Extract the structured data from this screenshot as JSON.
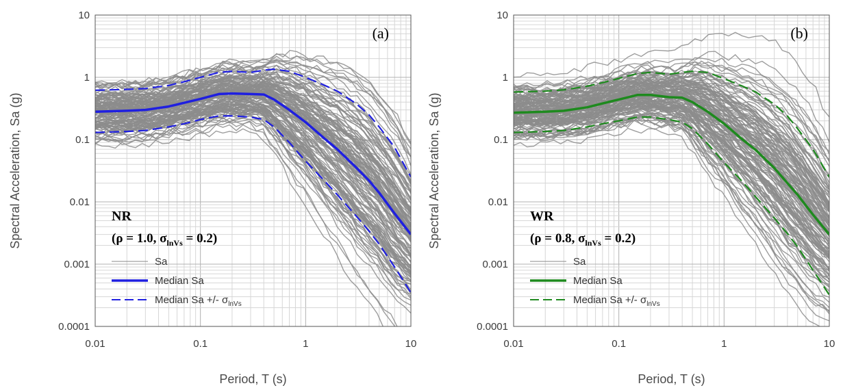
{
  "chart_data": [
    {
      "type": "line",
      "panel_label": "(a)",
      "case_name": "NR",
      "case_params": {
        "rho": "1.0",
        "sigma_sub": "lnVs",
        "sigma": "0.2"
      },
      "xlabel": "Period, T (s)",
      "ylabel": "Spectral Acceleration, Sa (g)",
      "xscale": "log",
      "yscale": "log",
      "xlim": [
        0.01,
        10
      ],
      "ylim": [
        0.0001,
        10
      ],
      "x_ticks": [
        "0.01",
        "0.1",
        "1",
        "10"
      ],
      "y_ticks": [
        "0.0001",
        "0.001",
        "0.01",
        "0.1",
        "1",
        "10"
      ],
      "grid": true,
      "legend": [
        {
          "label": "Sa",
          "style": "thin-gray",
          "color": "#888888"
        },
        {
          "label": "Median Sa",
          "style": "solid",
          "color": "#1f1fe0"
        },
        {
          "label": "Median Sa +/- σ",
          "sub": "lnVs",
          "style": "dashed",
          "color": "#1f1fe0"
        }
      ],
      "series": [
        {
          "name": "Median Sa",
          "style": "solid",
          "color": "#1f1fe0",
          "x": [
            0.01,
            0.02,
            0.03,
            0.05,
            0.07,
            0.1,
            0.15,
            0.2,
            0.3,
            0.4,
            0.5,
            0.7,
            1,
            1.5,
            2,
            3,
            4,
            5,
            7,
            10
          ],
          "y": [
            0.28,
            0.29,
            0.3,
            0.34,
            0.39,
            0.45,
            0.54,
            0.55,
            0.54,
            0.53,
            0.44,
            0.3,
            0.19,
            0.105,
            0.07,
            0.036,
            0.022,
            0.014,
            0.0065,
            0.003
          ]
        },
        {
          "name": "Median Sa + σ",
          "style": "dashed",
          "color": "#1f1fe0",
          "x": [
            0.01,
            0.02,
            0.03,
            0.05,
            0.07,
            0.1,
            0.15,
            0.2,
            0.3,
            0.4,
            0.5,
            0.7,
            1,
            1.5,
            2,
            3,
            4,
            5,
            7,
            10
          ],
          "y": [
            0.62,
            0.64,
            0.66,
            0.74,
            0.85,
            1.0,
            1.2,
            1.25,
            1.2,
            1.3,
            1.35,
            1.25,
            1.0,
            0.75,
            0.6,
            0.38,
            0.25,
            0.16,
            0.075,
            0.025
          ]
        },
        {
          "name": "Median Sa - σ",
          "style": "dashed",
          "color": "#1f1fe0",
          "x": [
            0.01,
            0.02,
            0.03,
            0.05,
            0.07,
            0.1,
            0.15,
            0.2,
            0.3,
            0.4,
            0.5,
            0.7,
            1,
            1.5,
            2,
            3,
            4,
            5,
            7,
            10
          ],
          "y": [
            0.13,
            0.135,
            0.14,
            0.16,
            0.18,
            0.21,
            0.24,
            0.24,
            0.23,
            0.21,
            0.16,
            0.09,
            0.045,
            0.022,
            0.013,
            0.006,
            0.0034,
            0.0021,
            0.0009,
            0.00035
          ]
        }
      ]
    },
    {
      "type": "line",
      "panel_label": "(b)",
      "case_name": "WR",
      "case_params": {
        "rho": "0.8",
        "sigma_sub": "lnVs",
        "sigma": "0.2"
      },
      "xlabel": "Period, T (s)",
      "ylabel": "Spectral Acceleration, Sa (g)",
      "xscale": "log",
      "yscale": "log",
      "xlim": [
        0.01,
        10
      ],
      "ylim": [
        0.0001,
        10
      ],
      "x_ticks": [
        "0.01",
        "0.1",
        "1",
        "10"
      ],
      "y_ticks": [
        "0.0001",
        "0.001",
        "0.01",
        "0.1",
        "1",
        "10"
      ],
      "grid": true,
      "legend": [
        {
          "label": "Sa",
          "style": "thin-gray",
          "color": "#888888"
        },
        {
          "label": "Median Sa",
          "style": "solid",
          "color": "#1e8a1e"
        },
        {
          "label": "Median Sa +/- σ",
          "sub": "lnVs",
          "style": "dashed",
          "color": "#1e8a1e"
        }
      ],
      "series": [
        {
          "name": "Median Sa",
          "style": "solid",
          "color": "#1e8a1e",
          "x": [
            0.01,
            0.02,
            0.03,
            0.05,
            0.07,
            0.1,
            0.15,
            0.2,
            0.3,
            0.4,
            0.5,
            0.7,
            1,
            1.5,
            2,
            3,
            4,
            5,
            7,
            10
          ],
          "y": [
            0.27,
            0.28,
            0.29,
            0.33,
            0.38,
            0.44,
            0.52,
            0.52,
            0.48,
            0.47,
            0.4,
            0.28,
            0.18,
            0.1,
            0.068,
            0.035,
            0.02,
            0.013,
            0.0062,
            0.003
          ]
        },
        {
          "name": "Median Sa + σ",
          "style": "dashed",
          "color": "#1e8a1e",
          "x": [
            0.01,
            0.02,
            0.03,
            0.05,
            0.07,
            0.1,
            0.15,
            0.2,
            0.3,
            0.4,
            0.5,
            0.7,
            1,
            1.5,
            2,
            3,
            4,
            5,
            7,
            10
          ],
          "y": [
            0.58,
            0.6,
            0.63,
            0.72,
            0.82,
            0.96,
            1.15,
            1.2,
            1.12,
            1.2,
            1.25,
            1.2,
            0.95,
            0.72,
            0.58,
            0.37,
            0.24,
            0.15,
            0.07,
            0.025
          ]
        },
        {
          "name": "Median Sa - σ",
          "style": "dashed",
          "color": "#1e8a1e",
          "x": [
            0.01,
            0.02,
            0.03,
            0.05,
            0.07,
            0.1,
            0.15,
            0.2,
            0.3,
            0.4,
            0.5,
            0.7,
            1,
            1.5,
            2,
            3,
            4,
            5,
            7,
            10
          ],
          "y": [
            0.13,
            0.135,
            0.14,
            0.16,
            0.18,
            0.2,
            0.23,
            0.23,
            0.21,
            0.19,
            0.15,
            0.085,
            0.043,
            0.021,
            0.012,
            0.0055,
            0.0031,
            0.0019,
            0.0008,
            0.00032
          ]
        }
      ]
    }
  ]
}
